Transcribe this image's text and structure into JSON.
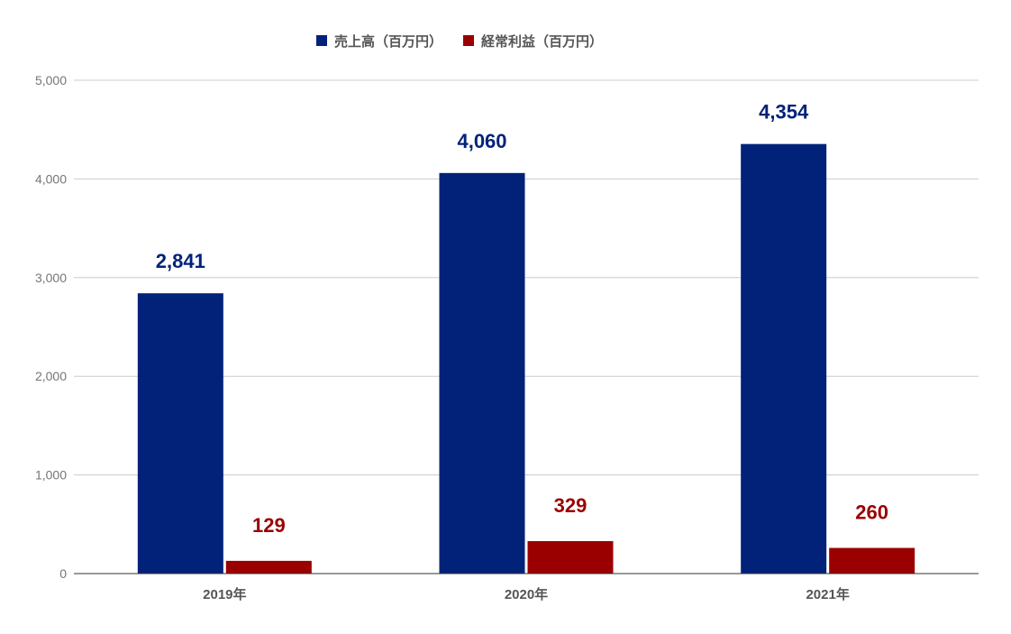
{
  "chart_data": {
    "type": "bar",
    "categories": [
      "2019年",
      "2020年",
      "2021年"
    ],
    "series": [
      {
        "name": "売上高（百万円）",
        "values": [
          2841,
          4060,
          4354
        ],
        "labels": [
          "2,841",
          "4,060",
          "4,354"
        ],
        "color": "#02227a"
      },
      {
        "name": "経常利益（百万円）",
        "values": [
          129,
          329,
          260
        ],
        "labels": [
          "129",
          "329",
          "260"
        ],
        "color": "#9b0000"
      }
    ],
    "title": "",
    "xlabel": "",
    "ylabel": "",
    "ylim": [
      0,
      5000
    ],
    "yticks": [
      0,
      1000,
      2000,
      3000,
      4000,
      5000
    ],
    "ytick_labels": [
      "0",
      "1,000",
      "2,000",
      "3,000",
      "4,000",
      "5,000"
    ],
    "grid": true,
    "legend_position": "top-center"
  }
}
